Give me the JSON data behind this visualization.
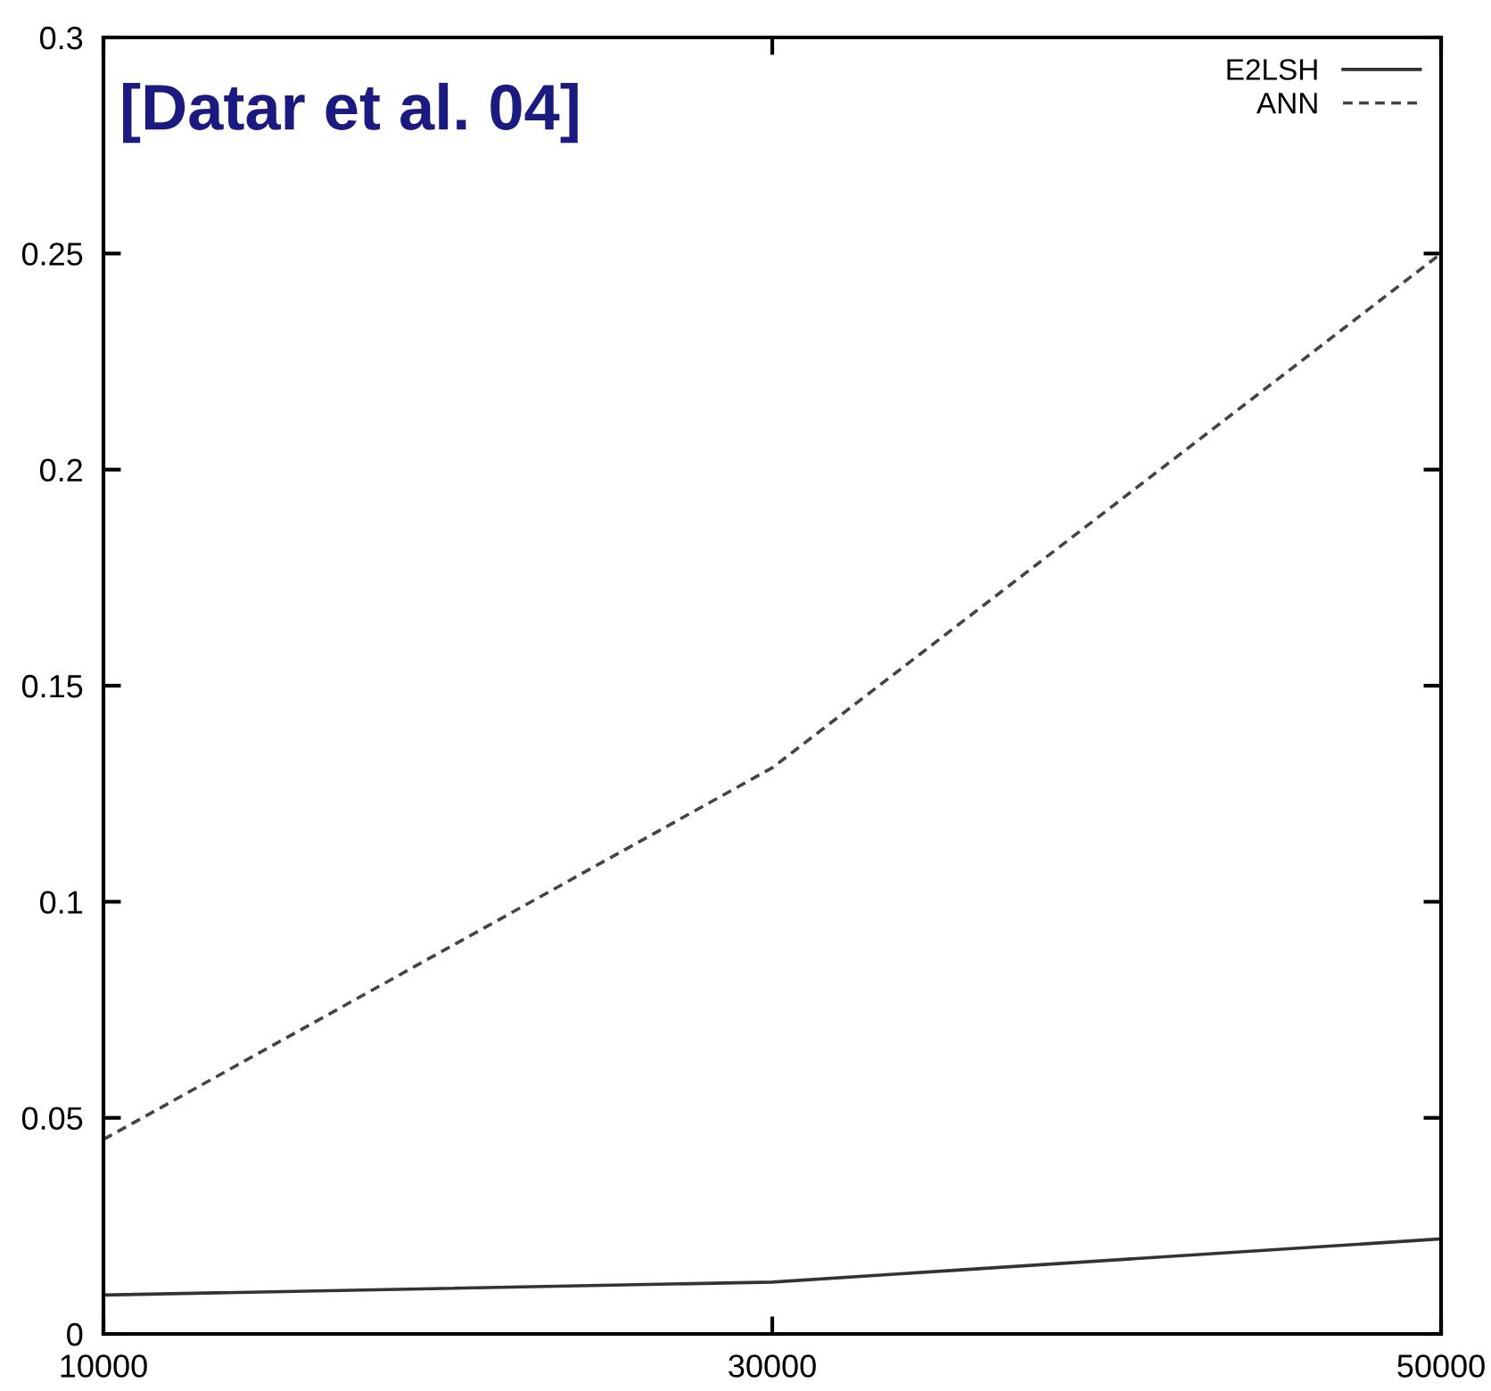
{
  "chart_data": {
    "type": "line",
    "annotations": [
      "[Datar et al. 04]"
    ],
    "x": [
      10000,
      30000,
      50000
    ],
    "series": [
      {
        "name": "E2LSH",
        "color": "#333333",
        "line_style": "solid",
        "values": [
          0.009,
          0.012,
          0.022
        ]
      },
      {
        "name": "ANN",
        "color": "#444444",
        "line_style": "dashed",
        "values": [
          0.045,
          0.131,
          0.25
        ]
      }
    ],
    "xlim": [
      10000,
      50000
    ],
    "xticks": [
      10000,
      30000,
      50000
    ],
    "ylim": [
      0,
      0.3
    ],
    "yticks": [
      0,
      0.05,
      0.1,
      0.15,
      0.2,
      0.25,
      0.3
    ],
    "grid": false,
    "legend": "top right",
    "marker": "none"
  }
}
